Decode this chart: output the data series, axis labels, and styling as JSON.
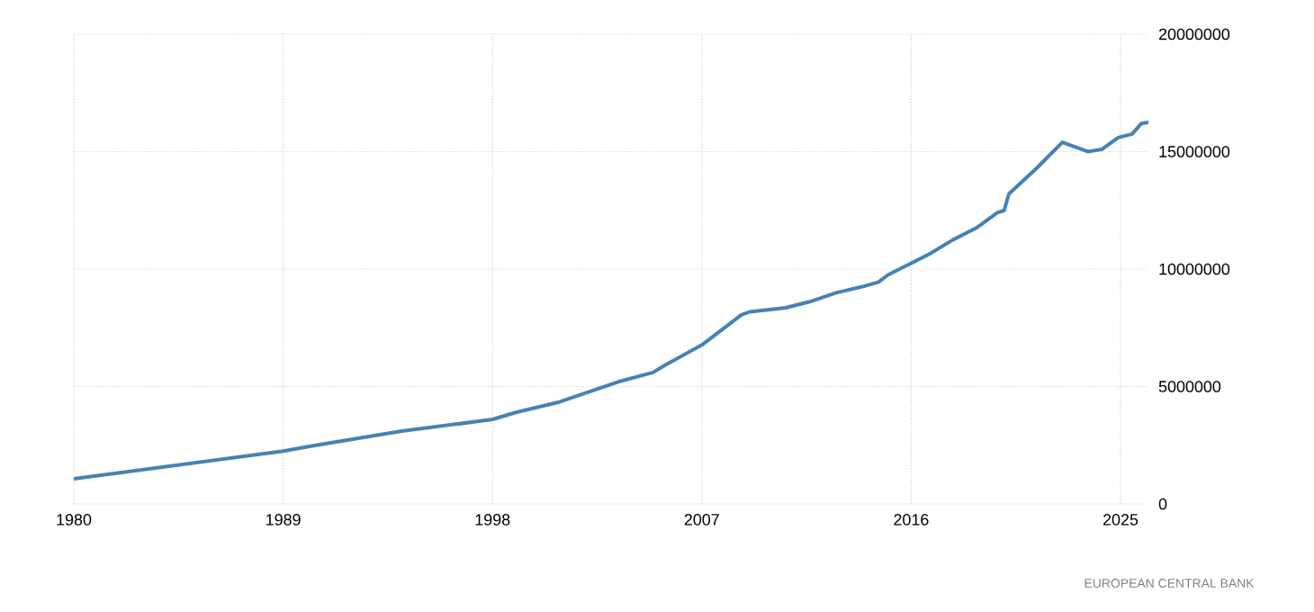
{
  "chart_data": {
    "type": "line",
    "x": [
      1980,
      1989,
      1990.4,
      1994.1,
      1998,
      1999.0,
      2000.9,
      2003.4,
      2004.9,
      2005.4,
      2007,
      2008.7,
      2009.05,
      2010.6,
      2011.6,
      2012.8,
      2013.9,
      2014.6,
      2015.0,
      2015.9,
      2016.8,
      2017.8,
      2018.8,
      2019.7,
      2020.0,
      2020.2,
      2021.4,
      2022.5,
      2023.6,
      2024.2,
      2024.9,
      2025.5,
      2025.9,
      2026.2
    ],
    "series": [
      {
        "color": "#4682b4",
        "values": [
          1070000,
          2250000,
          2500000,
          3100000,
          3600000,
          3900000,
          4350000,
          5200000,
          5600000,
          5900000,
          6770000,
          8050000,
          8180000,
          8350000,
          8600000,
          9000000,
          9250000,
          9450000,
          9750000,
          10200000,
          10650000,
          11250000,
          11750000,
          12400000,
          12500000,
          13200000,
          14300000,
          15400000,
          15000000,
          15100000,
          15600000,
          15750000,
          16200000,
          16250000
        ]
      }
    ],
    "xlim": [
      1980,
      2026.2
    ],
    "xticks": [
      1980,
      1989,
      1998,
      2007,
      2016,
      2025
    ],
    "ylim": [
      0,
      20000000
    ],
    "yticks": [
      0,
      5000000,
      10000000,
      15000000,
      20000000
    ],
    "grid": true,
    "line_style": "solid",
    "annotations": [
      "EUROPEAN CENTRAL BANK"
    ]
  }
}
